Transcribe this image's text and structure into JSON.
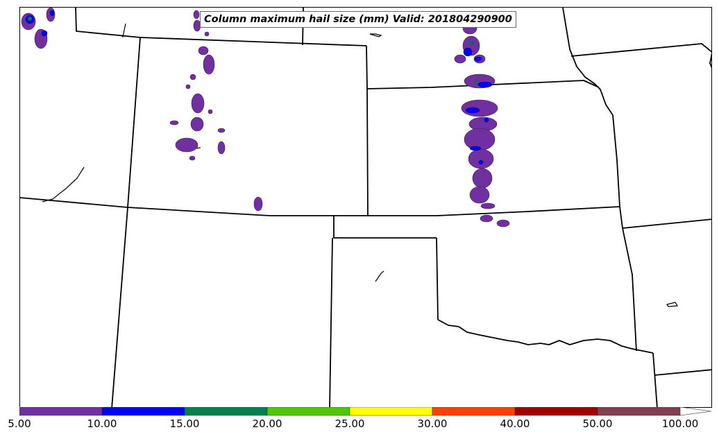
{
  "title": "Column maximum hail size (mm) Valid: 201804290900",
  "colorbar": {
    "ticks": [
      "5.00",
      "10.00",
      "15.00",
      "20.00",
      "25.00",
      "30.00",
      "40.00",
      "50.00",
      "100.00"
    ],
    "colors": [
      "#7030a0",
      "#0000ff",
      "#008050",
      "#50c800",
      "#ffff00",
      "#ff4000",
      "#a00000",
      "#804050"
    ],
    "extend": "max"
  }
}
